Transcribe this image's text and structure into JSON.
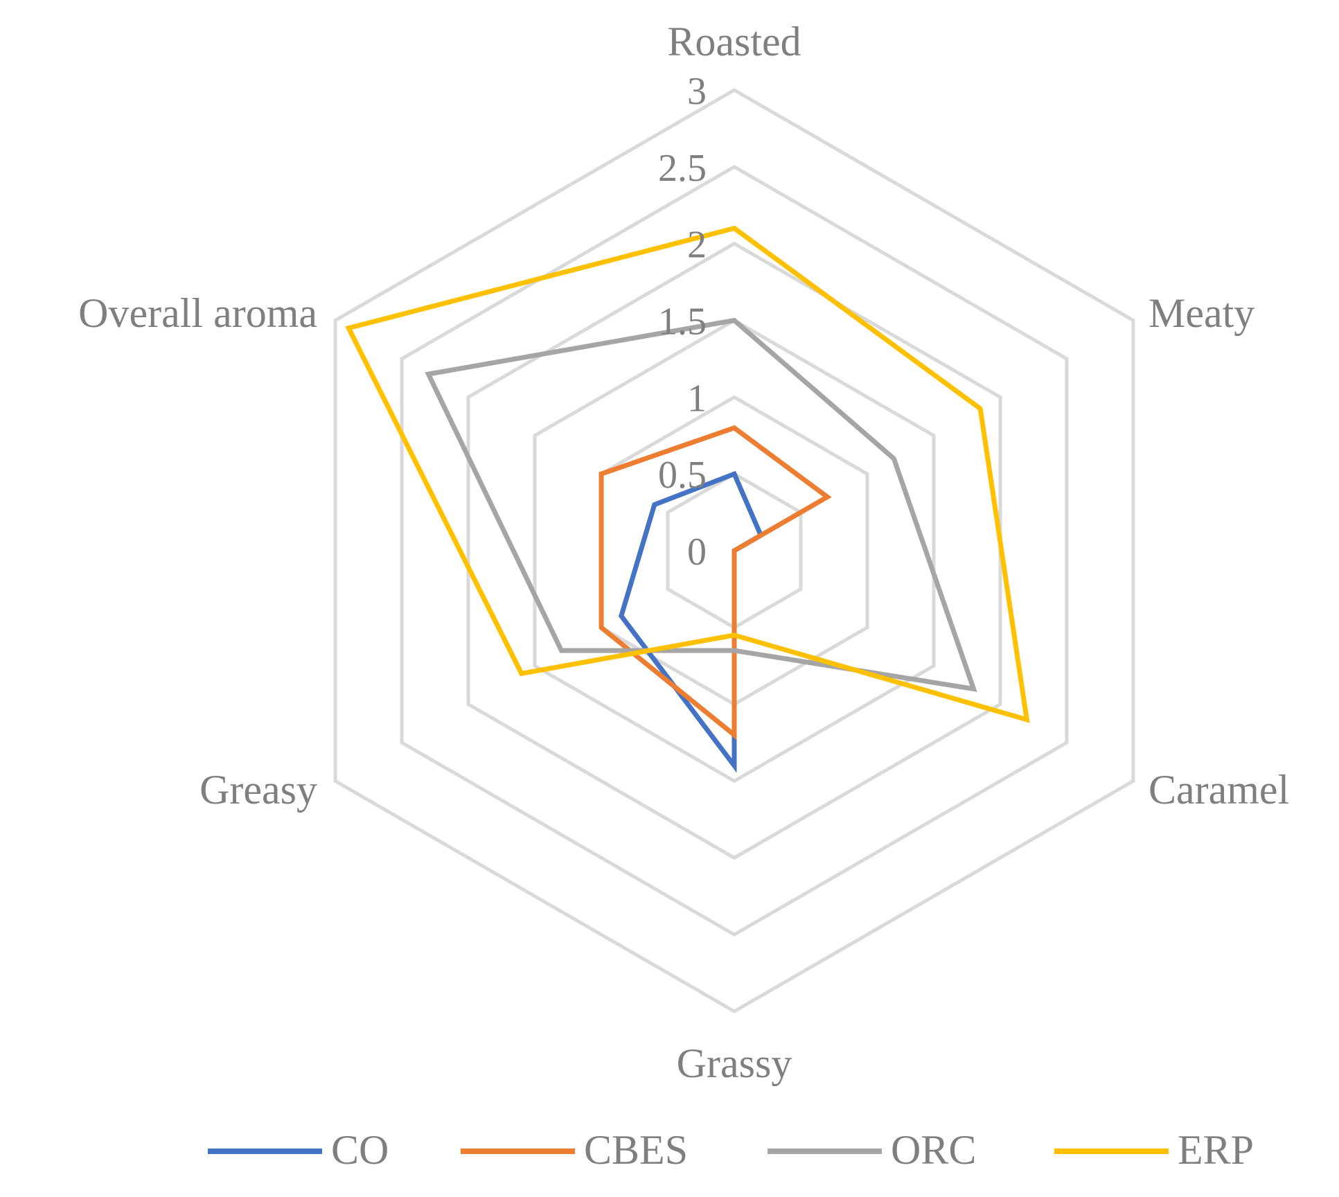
{
  "chart_data": {
    "type": "radar",
    "axes": [
      "Roasted",
      "Meaty",
      "Caramel",
      "Grassy",
      "Greasy",
      "Overall aroma"
    ],
    "ticks": [
      "0",
      "0.5",
      "1",
      "1.5",
      "2",
      "2.5",
      "3"
    ],
    "rlim": [
      0,
      3
    ],
    "grid": true,
    "legend": "bottom",
    "series": [
      {
        "name": "CO",
        "color": "#4472C4",
        "values": [
          0.5,
          0.2,
          0.0,
          1.4,
          0.85,
          0.6
        ]
      },
      {
        "name": "CBES",
        "color": "#ED7D31",
        "values": [
          0.8,
          0.7,
          0.0,
          1.2,
          1.0,
          1.0
        ]
      },
      {
        "name": "ORC",
        "color": "#A5A5A5",
        "values": [
          1.5,
          1.2,
          1.8,
          0.65,
          1.3,
          2.3
        ]
      },
      {
        "name": "ERP",
        "color": "#FFC000",
        "values": [
          2.1,
          1.85,
          2.2,
          0.55,
          1.6,
          2.9
        ]
      }
    ]
  }
}
